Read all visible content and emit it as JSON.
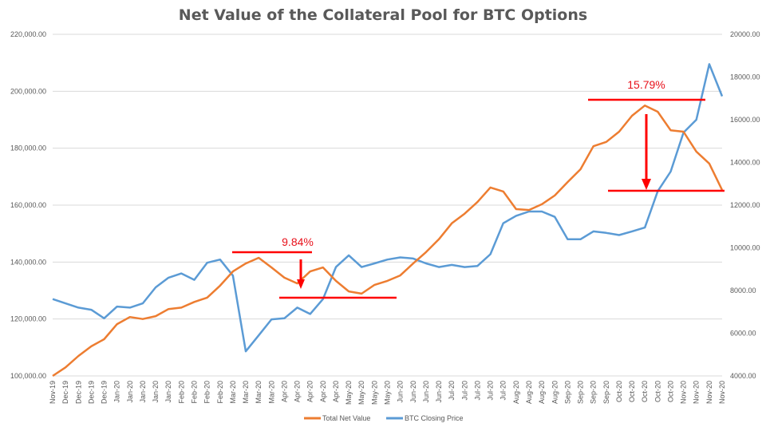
{
  "chart_data": {
    "type": "line",
    "title": "Net Value of the Collateral Pool for BTC Options",
    "legend_position": "bottom",
    "grid": true,
    "x": [
      "Nov-19",
      "Dec-19",
      "Dec-19",
      "Dec-19",
      "Dec-19",
      "Jan-20",
      "Jan-20",
      "Jan-20",
      "Jan-20",
      "Jan-20",
      "Feb-20",
      "Feb-20",
      "Feb-20",
      "Feb-20",
      "Mar-20",
      "Mar-20",
      "Mar-20",
      "Mar-20",
      "Apr-20",
      "Apr-20",
      "Apr-20",
      "Apr-20",
      "Apr-20",
      "May-20",
      "May-20",
      "May-20",
      "May-20",
      "Jun-20",
      "Jun-20",
      "Jun-20",
      "Jun-20",
      "Jul-20",
      "Jul-20",
      "Jul-20",
      "Jul-20",
      "Jul-20",
      "Aug-20",
      "Aug-20",
      "Aug-20",
      "Aug-20",
      "Sep-20",
      "Sep-20",
      "Sep-20",
      "Sep-20",
      "Oct-20",
      "Oct-20",
      "Oct-20",
      "Oct-20",
      "Oct-20",
      "Nov-20",
      "Nov-20",
      "Nov-20",
      "Nov-20"
    ],
    "y_left": {
      "ylim": [
        100000,
        220000
      ],
      "ticks": [
        "100,000.00",
        "120,000.00",
        "140,000.00",
        "160,000.00",
        "180,000.00",
        "200,000.00",
        "220,000.00"
      ]
    },
    "y_right": {
      "ylim": [
        4000,
        20000
      ],
      "ticks": [
        "4000.00",
        "6000.00",
        "8000.00",
        "10000.00",
        "12000.00",
        "14000.00",
        "16000.00",
        "18000.00",
        "20000.00"
      ]
    },
    "series": [
      {
        "name": "Total Net Value",
        "axis": "left",
        "color": "#ed7d31",
        "values": [
          100000,
          103000,
          107000,
          110400,
          112900,
          118200,
          120700,
          120000,
          121000,
          123500,
          124000,
          126000,
          127500,
          131700,
          136700,
          139500,
          141500,
          138100,
          134500,
          132500,
          136700,
          138100,
          133400,
          129700,
          128900,
          132000,
          133400,
          135300,
          139500,
          143500,
          148000,
          153600,
          157000,
          161100,
          166200,
          164800,
          158600,
          158300,
          160300,
          163400,
          168100,
          172600,
          180700,
          182200,
          185800,
          191400,
          195000,
          192800,
          186300,
          185800,
          178800,
          174600,
          165300
        ]
      },
      {
        "name": "BTC Closing Price",
        "axis": "right",
        "color": "#5b9bd5",
        "values": [
          7600,
          7400,
          7200,
          7100,
          6700,
          7250,
          7200,
          7400,
          8150,
          8600,
          8800,
          8500,
          9300,
          9450,
          8700,
          5150,
          5900,
          6650,
          6700,
          7200,
          6900,
          7600,
          9100,
          9650,
          9100,
          9270,
          9450,
          9550,
          9500,
          9270,
          9100,
          9200,
          9100,
          9150,
          9700,
          11150,
          11500,
          11700,
          11700,
          11450,
          10400,
          10400,
          10770,
          10700,
          10600,
          10770,
          10950,
          12650,
          13570,
          15400,
          16000,
          18600,
          17100
        ]
      }
    ],
    "annotations": [
      {
        "label": "9.84%",
        "color": "#ff0000"
      },
      {
        "label": "15.79%",
        "color": "#ff0000"
      }
    ]
  }
}
